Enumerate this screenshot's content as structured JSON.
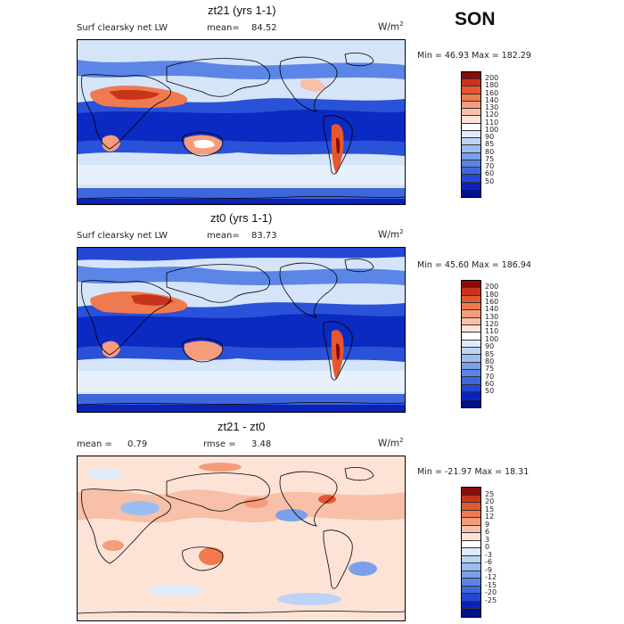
{
  "season": "SON",
  "panels": [
    {
      "title": "zt21 (yrs 1-1)",
      "left_label": "Surf clearsky net LW",
      "stat_label": "mean=",
      "stat_value": "84.52",
      "units": "W/m",
      "units_exp": "2",
      "minmax": "Min =  46.93 Max = 182.29",
      "colorbar": {
        "colors": [
          "#8b0a0a",
          "#c8331c",
          "#e5582f",
          "#f07a50",
          "#f59c7b",
          "#f8c0a8",
          "#fde3d6",
          "#ffffff",
          "#dfeafb",
          "#bcd3f7",
          "#9bbcf1",
          "#7aa0eb",
          "#5a84e3",
          "#3f67dc",
          "#2447d4",
          "#0b22b8",
          "#00108a"
        ],
        "labels": [
          "200",
          "180",
          "160",
          "140",
          "130",
          "120",
          "110",
          "100",
          "90",
          "85",
          "80",
          "75",
          "70",
          "60",
          "50"
        ]
      }
    },
    {
      "title": "zt0 (yrs 1-1)",
      "left_label": "Surf clearsky net LW",
      "stat_label": "mean=",
      "stat_value": "83.73",
      "units": "W/m",
      "units_exp": "2",
      "minmax": "Min =  45.60 Max = 186.94",
      "colorbar": {
        "colors": [
          "#8b0a0a",
          "#c8331c",
          "#e5582f",
          "#f07a50",
          "#f59c7b",
          "#f8c0a8",
          "#fde3d6",
          "#ffffff",
          "#dfeafb",
          "#bcd3f7",
          "#9bbcf1",
          "#7aa0eb",
          "#5a84e3",
          "#3f67dc",
          "#2447d4",
          "#0b22b8",
          "#00108a"
        ],
        "labels": [
          "200",
          "180",
          "160",
          "140",
          "130",
          "120",
          "110",
          "100",
          "90",
          "85",
          "80",
          "75",
          "70",
          "60",
          "50"
        ]
      }
    },
    {
      "title": "zt21 - zt0",
      "left_label": "mean =",
      "left_value": "0.79",
      "stat_label": "rmse =",
      "stat_value": "3.48",
      "units": "W/m",
      "units_exp": "2",
      "minmax": "Min = -21.97 Max =  18.31",
      "colorbar": {
        "colors": [
          "#8b0a0a",
          "#c8331c",
          "#e5582f",
          "#f07a50",
          "#f59c7b",
          "#f8c0a8",
          "#fde3d6",
          "#ffffff",
          "#dfeafb",
          "#bcd3f7",
          "#9bbcf1",
          "#7aa0eb",
          "#5a84e3",
          "#3f67dc",
          "#2447d4",
          "#0b22b8",
          "#00108a"
        ],
        "labels": [
          "25",
          "20",
          "15",
          "12",
          "9",
          "6",
          "3",
          "0",
          "-3",
          "-6",
          "-9",
          "-12",
          "-15",
          "-20",
          "-25"
        ]
      }
    }
  ]
}
